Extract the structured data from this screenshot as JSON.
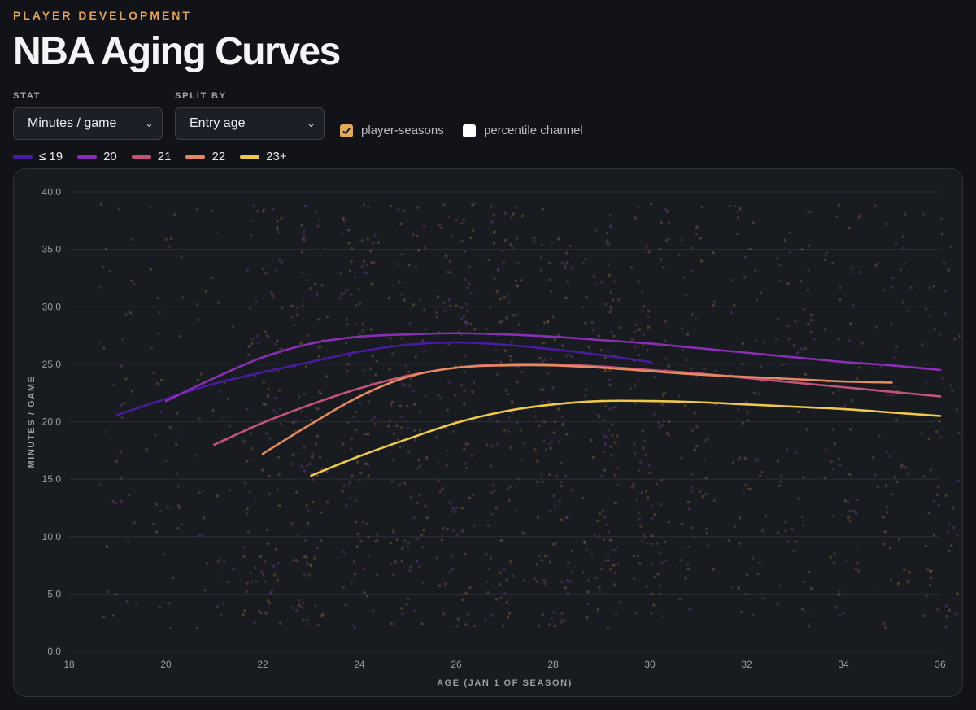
{
  "header": {
    "eyebrow": "PLAYER DEVELOPMENT",
    "title": "NBA Aging Curves"
  },
  "controls": {
    "stat": {
      "label": "STAT",
      "value": "Minutes / game"
    },
    "split": {
      "label": "SPLIT BY",
      "value": "Entry age"
    },
    "toggles": [
      {
        "label": "player-seasons",
        "checked": true
      },
      {
        "label": "percentile channel",
        "checked": false
      }
    ]
  },
  "colors": {
    "accent": "#e4a95d",
    "background": "#111318",
    "panel": "#181b20",
    "grid": "#2a2e35"
  },
  "chart_data": {
    "type": "line",
    "title": "NBA Aging Curves",
    "xlabel": "AGE (JAN 1 OF SEASON)",
    "ylabel": "MINUTES / GAME",
    "xlim": [
      18,
      36
    ],
    "ylim": [
      0,
      40
    ],
    "x_ticks": [
      "18",
      "20",
      "22",
      "24",
      "26",
      "28",
      "30",
      "32",
      "34",
      "36"
    ],
    "y_ticks": [
      "0.0",
      "5.0",
      "10.0",
      "15.0",
      "20.0",
      "25.0",
      "30.0",
      "35.0",
      "40.0"
    ],
    "grid": true,
    "legend": "top-left",
    "background_points": "player-seasons scatter (jittered), ages 19–36, minutes 2–39",
    "series": [
      {
        "name": "≤ 19",
        "color": "#4a1aa0",
        "x": [
          19,
          20,
          21,
          22,
          23,
          24,
          25,
          26,
          27,
          28,
          29,
          30
        ],
        "y": [
          20.6,
          22.0,
          23.3,
          24.3,
          25.2,
          26.1,
          26.7,
          26.9,
          26.7,
          26.3,
          25.8,
          25.2
        ]
      },
      {
        "name": "20",
        "color": "#8a2fb5",
        "x": [
          20,
          21,
          22,
          23,
          24,
          25,
          26,
          27,
          28,
          29,
          30,
          31,
          32,
          33,
          34,
          35,
          36
        ],
        "y": [
          21.8,
          23.8,
          25.6,
          26.8,
          27.4,
          27.6,
          27.7,
          27.6,
          27.4,
          27.1,
          26.8,
          26.4,
          26.0,
          25.6,
          25.2,
          24.9,
          24.5
        ]
      },
      {
        "name": "21",
        "color": "#c4537a",
        "x": [
          21,
          22,
          23,
          24,
          25,
          26,
          27,
          28,
          29,
          30,
          31,
          32,
          33,
          34,
          35,
          36
        ],
        "y": [
          18.0,
          19.9,
          21.5,
          22.9,
          24.0,
          24.7,
          25.0,
          25.0,
          24.8,
          24.5,
          24.2,
          23.8,
          23.4,
          23.0,
          22.6,
          22.2
        ]
      },
      {
        "name": "22",
        "color": "#e58a60",
        "x": [
          22,
          23,
          24,
          25,
          26,
          27,
          28,
          29,
          30,
          31,
          32,
          33,
          34,
          35
        ],
        "y": [
          17.2,
          19.8,
          22.2,
          23.9,
          24.7,
          24.9,
          24.9,
          24.7,
          24.4,
          24.1,
          23.9,
          23.7,
          23.5,
          23.4
        ]
      },
      {
        "name": "23+",
        "color": "#f0c84a",
        "x": [
          23,
          24,
          25,
          26,
          27,
          28,
          29,
          30,
          31,
          32,
          33,
          34,
          35,
          36
        ],
        "y": [
          15.3,
          17.0,
          18.5,
          19.9,
          20.9,
          21.5,
          21.8,
          21.8,
          21.7,
          21.5,
          21.3,
          21.1,
          20.8,
          20.5
        ]
      }
    ]
  }
}
